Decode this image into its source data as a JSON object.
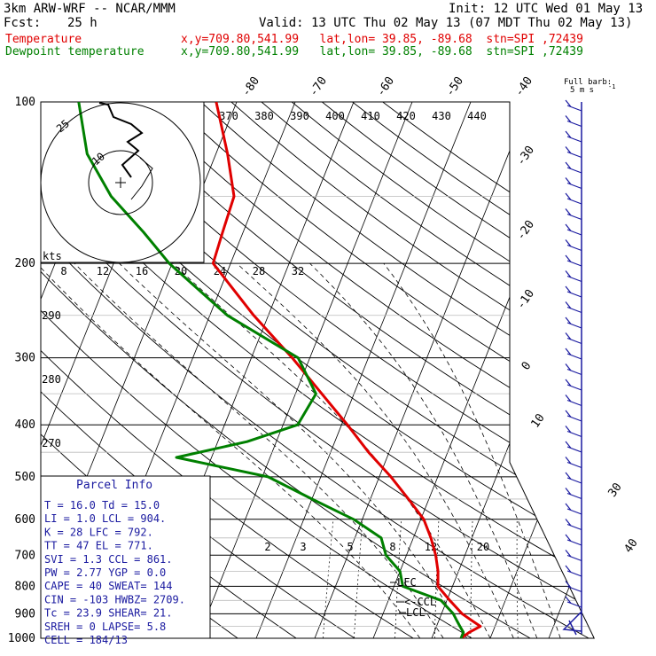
{
  "header": {
    "model": "3km ARW-WRF -- NCAR/MMM",
    "init": "Init: 12 UTC Wed 01 May 13",
    "fcst_label": "Fcst:",
    "fcst_value": "25 h",
    "valid": "Valid: 13 UTC Thu 02 May 13 (07 MDT Thu 02 May 13)",
    "temp_label": "Temperature",
    "dew_label": "Dewpoint temperature",
    "location": "x,y=709.80,541.99   lat,lon= 39.85, -89.68  stn=SPI ,72439"
  },
  "colors": {
    "temperature": "#e00000",
    "dewpoint": "#008000",
    "wind": "#1a1aa0"
  },
  "chart_data": {
    "type": "line",
    "chart_kind": "skew-T log-p sounding",
    "y_axis": "pressure (hPa), log scale",
    "ylim": [
      1000,
      100
    ],
    "pressure_ticks": [
      "100",
      "200",
      "300",
      "400",
      "500",
      "600",
      "700",
      "800",
      "900",
      "1000"
    ],
    "temp_ticks": [
      "-80",
      "-70",
      "-60",
      "-50",
      "-40",
      "-30",
      "-20",
      "-10",
      "0",
      "10",
      "30",
      "40"
    ],
    "theta_ticks": [
      "370",
      "380",
      "390",
      "400",
      "410",
      "420",
      "430",
      "440"
    ],
    "theta_left_ticks": [
      "290",
      "280",
      "270"
    ],
    "mixing_ratio_ticks": [
      "2",
      "3",
      "5",
      "8",
      "12",
      "20"
    ],
    "series": [
      {
        "name": "Temperature",
        "points": [
          [
            1000,
            15.0
          ],
          [
            975,
            16.0
          ],
          [
            950,
            17.5
          ],
          [
            925,
            15.5
          ],
          [
            900,
            13.5
          ],
          [
            850,
            10.5
          ],
          [
            800,
            7.5
          ],
          [
            750,
            6.5
          ],
          [
            700,
            5.0
          ],
          [
            650,
            3.0
          ],
          [
            600,
            0.5
          ],
          [
            550,
            -3.5
          ],
          [
            500,
            -8.0
          ],
          [
            450,
            -13.5
          ],
          [
            400,
            -19.0
          ],
          [
            350,
            -25.5
          ],
          [
            300,
            -33.0
          ],
          [
            250,
            -42.5
          ],
          [
            200,
            -53.0
          ],
          [
            175,
            -53.5
          ],
          [
            150,
            -54.0
          ],
          [
            125,
            -58.0
          ],
          [
            100,
            -63.5
          ]
        ]
      },
      {
        "name": "Dewpoint temperature",
        "points": [
          [
            1000,
            15.0
          ],
          [
            975,
            15.0
          ],
          [
            950,
            14.0
          ],
          [
            925,
            13.0
          ],
          [
            900,
            12.0
          ],
          [
            850,
            9.0
          ],
          [
            800,
            1.5
          ],
          [
            750,
            0.0
          ],
          [
            700,
            -3.5
          ],
          [
            650,
            -5.5
          ],
          [
            600,
            -11.5
          ],
          [
            550,
            -20.0
          ],
          [
            500,
            -29.0
          ],
          [
            460,
            -46.0
          ],
          [
            430,
            -35.0
          ],
          [
            400,
            -27.5
          ],
          [
            350,
            -26.5
          ],
          [
            300,
            -32.0
          ],
          [
            250,
            -47.0
          ],
          [
            200,
            -60.5
          ],
          [
            175,
            -67.0
          ],
          [
            150,
            -75.0
          ],
          [
            125,
            -82.0
          ],
          [
            100,
            -87.0
          ]
        ]
      }
    ],
    "hodograph": {
      "units_label": "kts",
      "ring_labels": [
        "25",
        "10"
      ],
      "speed_ticks": [
        "8",
        "12",
        "16",
        "20",
        "24",
        "28",
        "32"
      ]
    },
    "barb_legend": {
      "title": "Full barb:",
      "units": "5 m s",
      "sup": "-1"
    },
    "parcel_labels": [
      "LFC",
      "<-CCL",
      "LCL"
    ],
    "parcel_info": {
      "title": "Parcel Info",
      "rows": [
        "T  =   16.0 Td =  15.0",
        "LI =    1.0 LCL =  904.",
        "K  =     28 LFC =  792.",
        "TT =     47 EL  =  771.",
        "SVI =   1.3 CCL =  861.",
        "PW =   2.77 YGP =   0.0",
        "CAPE =   40 SWEAT=  144",
        "CIN =  -103 HWBZ= 2709.",
        "Tc =   23.9 SHEAR=  21.",
        "SREH =    0 LAPSE=  5.8",
        "CELL = 184/13"
      ]
    }
  }
}
